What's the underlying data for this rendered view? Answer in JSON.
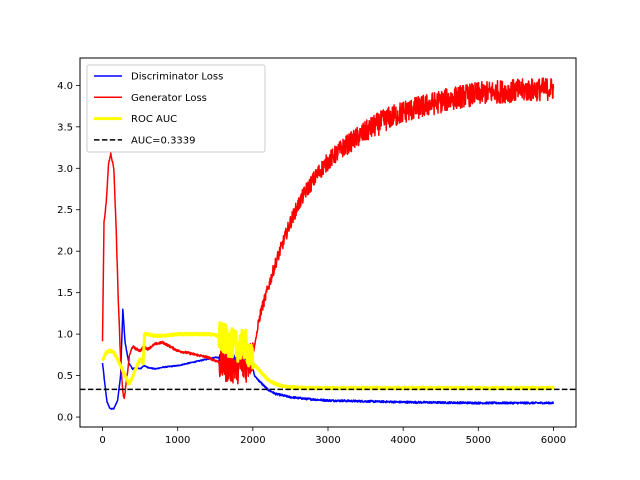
{
  "chart_data": {
    "type": "line",
    "title": "",
    "xlabel": "",
    "ylabel": "",
    "xlim": [
      -300,
      6300
    ],
    "ylim": [
      -0.12,
      4.33
    ],
    "xticks": [
      0,
      1000,
      2000,
      3000,
      4000,
      5000,
      6000
    ],
    "yticks": [
      0.0,
      0.5,
      1.0,
      1.5,
      2.0,
      2.5,
      3.0,
      3.5,
      4.0
    ],
    "xtick_labels": [
      "0",
      "1000",
      "2000",
      "3000",
      "4000",
      "5000",
      "6000"
    ],
    "ytick_labels": [
      "0.0",
      "0.5",
      "1.0",
      "1.5",
      "2.0",
      "2.5",
      "3.0",
      "3.5",
      "4.0"
    ],
    "grid": false,
    "legend_position": "upper-left",
    "series": [
      {
        "name": "Discriminator Loss",
        "color": "#0000ff",
        "style": "solid",
        "points": [
          [
            0,
            0.65
          ],
          [
            30,
            0.4
          ],
          [
            60,
            0.18
          ],
          [
            100,
            0.1
          ],
          [
            150,
            0.1
          ],
          [
            200,
            0.2
          ],
          [
            240,
            0.5
          ],
          [
            270,
            1.3
          ],
          [
            300,
            0.9
          ],
          [
            350,
            0.65
          ],
          [
            400,
            0.58
          ],
          [
            450,
            0.6
          ],
          [
            500,
            0.58
          ],
          [
            550,
            0.62
          ],
          [
            600,
            0.6
          ],
          [
            700,
            0.58
          ],
          [
            800,
            0.6
          ],
          [
            1000,
            0.62
          ],
          [
            1200,
            0.66
          ],
          [
            1400,
            0.7
          ],
          [
            1500,
            0.72
          ],
          [
            1600,
            0.72
          ],
          [
            1700,
            0.72
          ],
          [
            1800,
            0.72
          ],
          [
            1900,
            0.7
          ],
          [
            1980,
            0.68
          ],
          [
            2020,
            0.5
          ],
          [
            2100,
            0.42
          ],
          [
            2200,
            0.33
          ],
          [
            2300,
            0.28
          ],
          [
            2500,
            0.24
          ],
          [
            2700,
            0.22
          ],
          [
            3000,
            0.2
          ],
          [
            3500,
            0.19
          ],
          [
            4000,
            0.18
          ],
          [
            4500,
            0.175
          ],
          [
            5000,
            0.17
          ],
          [
            5500,
            0.17
          ],
          [
            6000,
            0.17
          ]
        ]
      },
      {
        "name": "Generator Loss",
        "color": "#ff0000",
        "style": "solid",
        "points": [
          [
            0,
            0.9
          ],
          [
            20,
            2.35
          ],
          [
            50,
            2.6
          ],
          [
            80,
            3.05
          ],
          [
            110,
            3.18
          ],
          [
            150,
            3.0
          ],
          [
            180,
            2.3
          ],
          [
            210,
            1.4
          ],
          [
            240,
            0.7
          ],
          [
            270,
            0.3
          ],
          [
            290,
            0.22
          ],
          [
            320,
            0.45
          ],
          [
            360,
            0.75
          ],
          [
            400,
            0.85
          ],
          [
            450,
            0.82
          ],
          [
            500,
            0.8
          ],
          [
            550,
            0.85
          ],
          [
            600,
            0.82
          ],
          [
            700,
            0.88
          ],
          [
            800,
            0.9
          ],
          [
            900,
            0.85
          ],
          [
            1000,
            0.8
          ],
          [
            1100,
            0.78
          ],
          [
            1200,
            0.76
          ],
          [
            1300,
            0.74
          ],
          [
            1400,
            0.72
          ],
          [
            1500,
            0.68
          ],
          [
            1600,
            0.65
          ],
          [
            1700,
            0.62
          ],
          [
            1800,
            0.62
          ],
          [
            1900,
            0.62
          ],
          [
            2000,
            0.75
          ],
          [
            2100,
            1.25
          ],
          [
            2200,
            1.55
          ],
          [
            2300,
            1.85
          ],
          [
            2400,
            2.1
          ],
          [
            2500,
            2.35
          ],
          [
            2600,
            2.55
          ],
          [
            2700,
            2.72
          ],
          [
            2800,
            2.85
          ],
          [
            2900,
            2.98
          ],
          [
            3000,
            3.08
          ],
          [
            3200,
            3.25
          ],
          [
            3400,
            3.38
          ],
          [
            3600,
            3.5
          ],
          [
            3800,
            3.6
          ],
          [
            4000,
            3.68
          ],
          [
            4200,
            3.73
          ],
          [
            4400,
            3.78
          ],
          [
            4600,
            3.83
          ],
          [
            4800,
            3.87
          ],
          [
            5000,
            3.9
          ],
          [
            5200,
            3.92
          ],
          [
            5400,
            3.93
          ],
          [
            5600,
            3.94
          ],
          [
            5800,
            3.95
          ],
          [
            6000,
            3.96
          ]
        ]
      },
      {
        "name": "ROC AUC",
        "color": "#ffff00",
        "style": "solid",
        "points": [
          [
            0,
            0.68
          ],
          [
            50,
            0.78
          ],
          [
            100,
            0.8
          ],
          [
            150,
            0.78
          ],
          [
            200,
            0.7
          ],
          [
            250,
            0.6
          ],
          [
            300,
            0.5
          ],
          [
            350,
            0.4
          ],
          [
            400,
            0.48
          ],
          [
            450,
            0.6
          ],
          [
            500,
            0.7
          ],
          [
            540,
            0.65
          ],
          [
            560,
            1.0
          ],
          [
            600,
            1.0
          ],
          [
            700,
            0.98
          ],
          [
            800,
            0.98
          ],
          [
            1000,
            1.0
          ],
          [
            1200,
            1.0
          ],
          [
            1400,
            1.0
          ],
          [
            1500,
            0.99
          ],
          [
            1600,
            0.95
          ],
          [
            1700,
            0.9
          ],
          [
            1800,
            0.85
          ],
          [
            1900,
            0.88
          ],
          [
            2000,
            0.65
          ],
          [
            2100,
            0.55
          ],
          [
            2200,
            0.45
          ],
          [
            2300,
            0.4
          ],
          [
            2400,
            0.37
          ],
          [
            2500,
            0.36
          ],
          [
            2700,
            0.35
          ],
          [
            3000,
            0.35
          ],
          [
            4000,
            0.35
          ],
          [
            5000,
            0.35
          ],
          [
            6000,
            0.35
          ]
        ]
      },
      {
        "name": "AUC=0.3339",
        "color": "#000000",
        "style": "dashed",
        "type": "hline",
        "y": 0.3339
      }
    ]
  }
}
